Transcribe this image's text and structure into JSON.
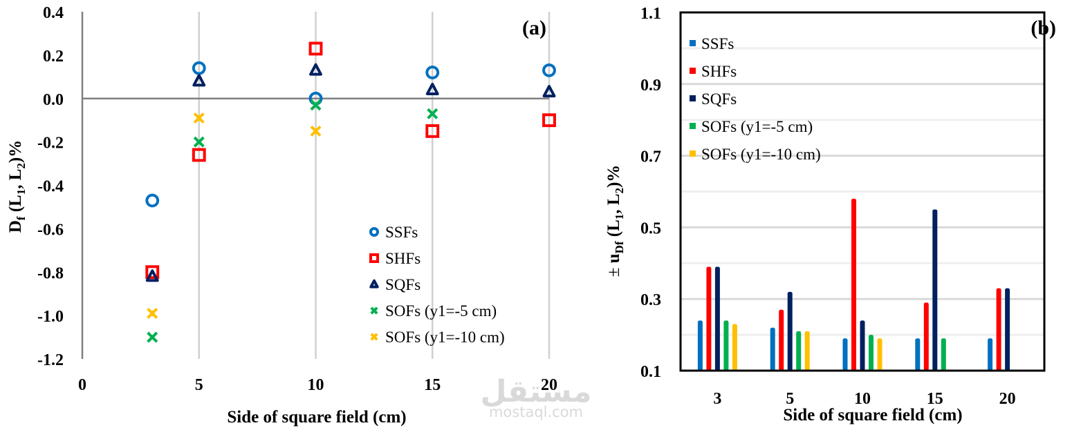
{
  "watermark": {
    "arabic": "مستقل",
    "latin": "mostaql.com"
  },
  "chart_data": [
    {
      "type": "scatter",
      "panel_label": "(a)",
      "title": "",
      "xlabel": "Side of square field (cm)",
      "ylabel_parts": {
        "main": "D",
        "sub_main": "f",
        "open": " (L",
        "sub1": "1",
        "mid": ", L",
        "sub2": "2",
        "close": ")%"
      },
      "xlim": [
        0,
        20
      ],
      "ylim": [
        -1.2,
        0.4
      ],
      "xticks": [
        0,
        5,
        10,
        15,
        20
      ],
      "xtick_labels": [
        "0",
        "5",
        "10",
        "15",
        "20"
      ],
      "yticks": [
        0.4,
        0.2,
        0.0,
        -0.2,
        -0.4,
        -0.6,
        -0.8,
        -1.0,
        -1.2
      ],
      "ytick_labels": [
        "0.4",
        "0.2",
        "0.0",
        "-0.2",
        "-0.4",
        "-0.6",
        "-0.8",
        "-1.0",
        "-1.2"
      ],
      "grid": {
        "x": true,
        "y": false
      },
      "legend_position": "bottom-right",
      "x": [
        3,
        5,
        10,
        15,
        20
      ],
      "series": [
        {
          "name": "SSFs",
          "marker": "circle",
          "color": "#0070c0",
          "values": [
            -0.47,
            0.14,
            0.0,
            0.12,
            0.13
          ]
        },
        {
          "name": "SHFs",
          "marker": "square",
          "color": "#ff0000",
          "values": [
            -0.8,
            -0.26,
            0.23,
            -0.15,
            -0.1
          ]
        },
        {
          "name": "SQFs",
          "marker": "triangle",
          "color": "#002060",
          "values": [
            -0.82,
            0.08,
            0.13,
            0.04,
            0.03
          ]
        },
        {
          "name": "SOFs (y1=-5 cm)",
          "marker": "x",
          "color": "#00b050",
          "values": [
            -1.1,
            -0.2,
            -0.03,
            -0.07,
            null
          ]
        },
        {
          "name": "SOFs (y1=-10 cm)",
          "marker": "asterisk",
          "color": "#ffc000",
          "values": [
            -0.99,
            -0.09,
            -0.15,
            null,
            null
          ]
        }
      ]
    },
    {
      "type": "bar",
      "panel_label": "(b)",
      "title": "",
      "xlabel": "Side of square field (cm)",
      "ylabel_parts": {
        "pm": "± ",
        "main": "u",
        "sub_main": "Df",
        "open": " (L",
        "sub1": "1",
        "mid": ", L",
        "sub2": "2",
        "close": ")%"
      },
      "categories": [
        "3",
        "5",
        "10",
        "15",
        "20"
      ],
      "ylim": [
        0.1,
        1.1
      ],
      "yticks": [
        1.1,
        0.9,
        0.7,
        0.5,
        0.3,
        0.1
      ],
      "ytick_labels": [
        "1.1",
        "0.9",
        "0.7",
        "0.5",
        "0.3",
        "0.1"
      ],
      "minor_gridlines": [
        1.0,
        0.8,
        0.6,
        0.4,
        0.2
      ],
      "grid": {
        "x": false,
        "y": true
      },
      "legend_position": "top-left",
      "series": [
        {
          "name": "SSFs",
          "color": "#0070c0",
          "values": [
            0.24,
            0.22,
            0.19,
            0.19,
            0.19
          ]
        },
        {
          "name": "SHFs",
          "color": "#ff0000",
          "values": [
            0.39,
            0.27,
            0.58,
            0.29,
            0.33
          ]
        },
        {
          "name": "SQFs",
          "color": "#002060",
          "values": [
            0.39,
            0.32,
            0.24,
            0.55,
            0.33
          ]
        },
        {
          "name": "SOFs (y1=-5 cm)",
          "color": "#00b050",
          "values": [
            0.24,
            0.21,
            0.2,
            0.19,
            null
          ]
        },
        {
          "name": "SOFs (y1=-10 cm)",
          "color": "#ffc000",
          "values": [
            0.23,
            0.21,
            0.19,
            null,
            null
          ]
        }
      ]
    }
  ]
}
